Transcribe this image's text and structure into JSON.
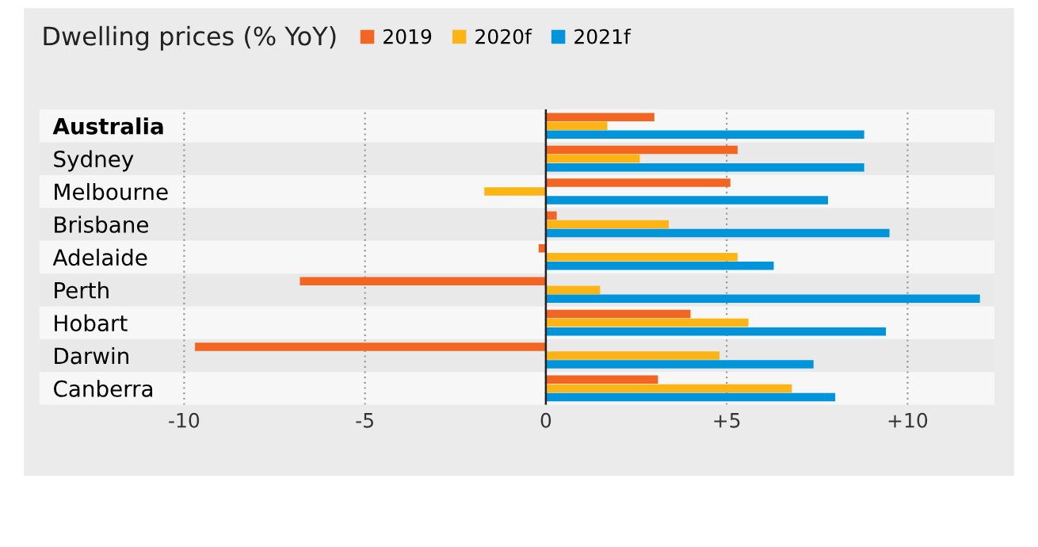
{
  "chart_data": {
    "type": "bar",
    "orientation": "horizontal",
    "title": "Dwelling prices (% YoY)",
    "categories": [
      "Australia",
      "Sydney",
      "Melbourne",
      "Brisbane",
      "Adelaide",
      "Perth",
      "Hobart",
      "Darwin",
      "Canberra"
    ],
    "series": [
      {
        "name": "2019",
        "color": "#f26522",
        "values": [
          3.0,
          5.3,
          5.1,
          0.3,
          -0.2,
          -6.8,
          4.0,
          -9.7,
          3.1
        ]
      },
      {
        "name": "2020f",
        "color": "#fdb515",
        "values": [
          1.7,
          2.6,
          -1.7,
          3.4,
          5.3,
          1.5,
          5.6,
          4.8,
          6.8
        ]
      },
      {
        "name": "2021f",
        "color": "#0095da",
        "values": [
          8.8,
          8.8,
          7.8,
          9.5,
          6.3,
          12.0,
          9.4,
          7.4,
          8.0
        ]
      }
    ],
    "xlim": [
      -14,
      12.4
    ],
    "xticks": [
      -10,
      -5,
      0,
      {
        "value": 5,
        "label": "+5"
      },
      {
        "value": 10,
        "label": "+10"
      }
    ],
    "grid": "x",
    "legend": "top"
  }
}
